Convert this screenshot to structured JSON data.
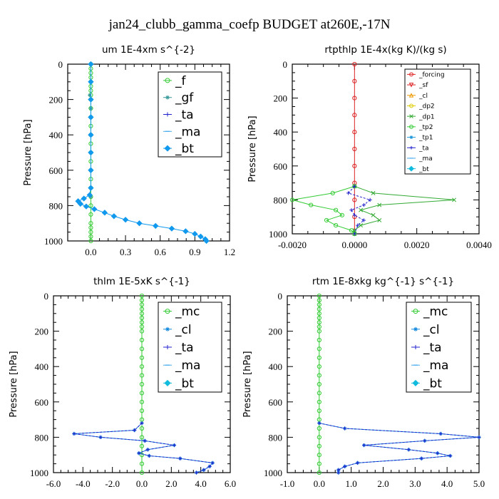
{
  "title": "jan24_clubb_gamma_coefp  BUDGET at260E,-17N",
  "chart_data": [
    {
      "type": "line",
      "title": "um  1E-4xm s^{-2}",
      "ylabel": "Pressure [hPa]",
      "xlim": [
        -0.2,
        1.2
      ],
      "ylim": [
        1000,
        0
      ],
      "xticks": [
        0.0,
        0.3,
        0.6,
        0.9,
        1.2
      ],
      "xtick_labels": [
        "0.0",
        "0.3",
        "0.6",
        "0.9",
        "1.2"
      ],
      "yticks": [
        0,
        200,
        400,
        600,
        800,
        1000
      ],
      "ytick_labels": [
        "0",
        "200",
        "400",
        "600",
        "800",
        "1000"
      ],
      "legend_position": "top-right",
      "legend_font": 17,
      "series": [
        {
          "name": "_f",
          "color": "#33cc33",
          "marker": "circle",
          "draw": "line",
          "y": [
            0,
            25,
            50,
            75,
            100,
            125,
            150,
            175,
            200,
            250,
            300,
            350,
            400,
            450,
            500,
            550,
            600,
            650,
            700,
            750,
            800,
            850,
            900,
            925,
            950,
            975,
            1000
          ],
          "x": [
            0,
            0,
            0,
            0,
            0,
            0,
            0,
            0,
            0,
            0,
            0,
            0,
            0,
            0,
            0,
            0,
            0,
            0,
            0,
            0,
            0,
            0,
            0,
            0,
            0,
            0,
            0
          ]
        },
        {
          "name": "_gf",
          "color": "#3a9a9a",
          "marker": "star",
          "draw": "points",
          "y": [
            100,
            175,
            250,
            400,
            600,
            750
          ],
          "x": [
            0,
            -0.01,
            0,
            0,
            0,
            0
          ]
        },
        {
          "name": "_ta",
          "color": "#2222cc",
          "marker": "plus",
          "draw": "none",
          "y": [],
          "x": []
        },
        {
          "name": "_ma",
          "color": "#44aaee",
          "marker": "dash",
          "draw": "none",
          "y": [],
          "x": []
        },
        {
          "name": "_bt",
          "color": "#1199ee",
          "marker": "diamond",
          "draw": "line",
          "y": [
            0,
            100,
            200,
            300,
            400,
            500,
            600,
            700,
            740,
            760,
            775,
            790,
            805,
            820,
            840,
            860,
            880,
            900,
            915,
            930,
            945,
            960,
            975,
            990,
            1000
          ],
          "x": [
            0,
            0,
            0,
            0,
            0,
            0,
            0,
            0,
            -0.01,
            -0.06,
            -0.11,
            -0.09,
            -0.04,
            0.03,
            0.12,
            0.2,
            0.3,
            0.42,
            0.56,
            0.7,
            0.82,
            0.9,
            0.95,
            0.99,
            1.0
          ]
        }
      ]
    },
    {
      "type": "line",
      "title": "rtpthlp  1E-4x(kg K)/(kg s)",
      "ylabel": "Pressure [hPa]",
      "xlim": [
        -0.002,
        0.004
      ],
      "ylim": [
        1000,
        0
      ],
      "xticks": [
        -0.002,
        0.0,
        0.002,
        0.004
      ],
      "xtick_labels": [
        "-0.0020",
        "0.0000",
        "0.0020",
        "0.0040"
      ],
      "yticks": [
        0,
        200,
        400,
        600,
        800,
        1000
      ],
      "ytick_labels": [
        "0",
        "200",
        "400",
        "600",
        "800",
        "1000"
      ],
      "legend_position": "top-right",
      "legend_font": 9,
      "series": [
        {
          "name": "_forcing",
          "color": "#dd2222",
          "marker": "circle",
          "draw": "line",
          "y": [
            0,
            100,
            200,
            300,
            400,
            500,
            600,
            700,
            800,
            900,
            1000
          ],
          "x": [
            0,
            0,
            0,
            0,
            0,
            0,
            0,
            0,
            0,
            0,
            0
          ]
        },
        {
          "name": "_sf",
          "color": "#dd2222",
          "marker": "triangle-down",
          "draw": "none",
          "y": [],
          "x": []
        },
        {
          "name": "_cl",
          "color": "#ee9900",
          "marker": "triangle",
          "draw": "none",
          "y": [],
          "x": []
        },
        {
          "name": "_dp2",
          "color": "#ddcc00",
          "marker": "circle",
          "draw": "none",
          "y": [],
          "x": []
        },
        {
          "name": "_dp1",
          "color": "#33aa33",
          "marker": "x",
          "draw": "line",
          "y": [
            720,
            760,
            800,
            830,
            860,
            890,
            920,
            950,
            980,
            1000
          ],
          "x": [
            0,
            0.0006,
            0.0032,
            0.0008,
            0.0002,
            0.0006,
            0.0008,
            0.0002,
            0,
            0
          ]
        },
        {
          "name": "_tp2",
          "color": "#33cc33",
          "marker": "circle",
          "draw": "line",
          "y": [
            720,
            760,
            800,
            830,
            860,
            890,
            920,
            950,
            980,
            1000
          ],
          "x": [
            0,
            -0.0007,
            -0.002,
            -0.0014,
            -0.0006,
            -0.0004,
            -0.0009,
            -0.0006,
            -0.0001,
            0
          ]
        },
        {
          "name": "_tp1",
          "color": "#2299dd",
          "marker": "star",
          "draw": "none",
          "y": [],
          "x": []
        },
        {
          "name": "_ta",
          "color": "#2222cc",
          "marker": "plus",
          "draw": "line",
          "y": [
            720,
            760,
            800,
            830,
            860,
            890,
            920,
            950,
            1000
          ],
          "x": [
            0,
            -0.0002,
            0.0005,
            0.0003,
            -0.0001,
            0,
            0.0003,
            0.0001,
            0
          ]
        },
        {
          "name": "_ma",
          "color": "#44aaee",
          "marker": "dash",
          "draw": "none",
          "y": [],
          "x": []
        },
        {
          "name": "_bt",
          "color": "#11bbdd",
          "marker": "diamond",
          "draw": "none",
          "y": [],
          "x": []
        }
      ]
    },
    {
      "type": "line",
      "title": "thlm  1E-5xK  s^{-1}",
      "ylabel": "Pressure [hPa]",
      "xlim": [
        -6.0,
        6.0
      ],
      "ylim": [
        1000,
        0
      ],
      "xticks": [
        -6,
        -4,
        -2,
        0,
        2,
        4,
        6
      ],
      "xtick_labels": [
        "-6.0",
        "-4.0",
        "-2.0",
        "0.0",
        "2.0",
        "4.0",
        "6.0"
      ],
      "yticks": [
        0,
        200,
        400,
        600,
        800,
        1000
      ],
      "ytick_labels": [
        "0",
        "200",
        "400",
        "600",
        "800",
        "1000"
      ],
      "legend_position": "top-right",
      "legend_font": 17,
      "series": [
        {
          "name": "_mc",
          "color": "#33cc33",
          "marker": "circle",
          "draw": "line",
          "y": [
            0,
            25,
            50,
            75,
            100,
            125,
            150,
            175,
            200,
            250,
            300,
            350,
            400,
            450,
            500,
            550,
            600,
            650,
            700,
            750,
            800,
            850,
            900,
            950,
            1000
          ],
          "x": [
            0,
            0,
            0,
            0,
            0,
            0,
            0,
            0,
            0,
            0,
            0,
            0,
            0,
            0,
            0,
            0,
            0,
            0,
            0,
            0,
            0,
            0,
            0,
            0,
            0
          ]
        },
        {
          "name": "_cl",
          "color": "#1188dd",
          "marker": "star",
          "draw": "line",
          "y": [
            720,
            760,
            780,
            800,
            820,
            845,
            870,
            890,
            905,
            920,
            945,
            965,
            985,
            1000
          ],
          "x": [
            0,
            -0.5,
            -4.6,
            -2.8,
            0.2,
            2.2,
            0.4,
            -0.2,
            0.5,
            2.6,
            4.8,
            4.6,
            4.2,
            3.7
          ]
        },
        {
          "name": "_ta",
          "color": "#2222cc",
          "marker": "plus",
          "draw": "line",
          "y": [
            720,
            760,
            780,
            800,
            820,
            845,
            870,
            890,
            905,
            920,
            945,
            965,
            985,
            1000
          ],
          "x": [
            0,
            -0.5,
            -4.6,
            -2.8,
            0.2,
            2.2,
            0.4,
            -0.2,
            0.5,
            2.6,
            4.8,
            4.6,
            4.2,
            3.7
          ]
        },
        {
          "name": "_ma",
          "color": "#44aaee",
          "marker": "dash",
          "draw": "none",
          "y": [],
          "x": []
        },
        {
          "name": "_bt",
          "color": "#11bbdd",
          "marker": "diamond",
          "draw": "none",
          "y": [],
          "x": []
        }
      ]
    },
    {
      "type": "line",
      "title": "rtm  1E-8xkg kg^{-1} s^{-1}",
      "ylabel": "Pressure [hPa]",
      "xlim": [
        -1.0,
        5.0
      ],
      "ylim": [
        1000,
        0
      ],
      "xticks": [
        -1,
        0,
        1,
        2,
        3,
        4,
        5
      ],
      "xtick_labels": [
        "-1.0",
        "0.0",
        "1.0",
        "2.0",
        "3.0",
        "4.0",
        "5.0"
      ],
      "yticks": [
        0,
        200,
        400,
        600,
        800,
        1000
      ],
      "ytick_labels": [
        "0",
        "200",
        "400",
        "600",
        "800",
        "1000"
      ],
      "legend_position": "top-right",
      "legend_font": 17,
      "series": [
        {
          "name": "_mc",
          "color": "#33cc33",
          "marker": "circle",
          "draw": "line",
          "y": [
            0,
            25,
            50,
            75,
            100,
            125,
            150,
            175,
            200,
            250,
            300,
            350,
            400,
            450,
            500,
            550,
            600,
            650,
            700,
            750,
            800,
            850,
            900,
            950,
            1000
          ],
          "x": [
            0,
            0,
            0,
            0,
            0,
            0,
            0,
            0,
            0,
            0,
            0,
            0,
            0,
            0,
            0,
            0,
            0,
            0,
            0,
            0,
            0,
            0,
            0,
            0,
            0
          ]
        },
        {
          "name": "_cl",
          "color": "#1188dd",
          "marker": "star",
          "draw": "line",
          "y": [
            720,
            750,
            780,
            800,
            820,
            845,
            870,
            890,
            905,
            920,
            945,
            965,
            985,
            1000
          ],
          "x": [
            0,
            0.8,
            3.8,
            5.0,
            3.3,
            1.4,
            2.8,
            3.7,
            4.1,
            3.2,
            1.2,
            0.8,
            0.6,
            0.6
          ]
        },
        {
          "name": "_ta",
          "color": "#2222cc",
          "marker": "plus",
          "draw": "line",
          "y": [
            720,
            750,
            780,
            800,
            820,
            845,
            870,
            890,
            905,
            920,
            945,
            965,
            985,
            1000
          ],
          "x": [
            0,
            0.8,
            3.8,
            5.0,
            3.3,
            1.4,
            2.8,
            3.7,
            4.1,
            3.2,
            1.2,
            0.8,
            0.6,
            0.6
          ]
        },
        {
          "name": "_ma",
          "color": "#44aaee",
          "marker": "dash",
          "draw": "none",
          "y": [],
          "x": []
        },
        {
          "name": "_bt",
          "color": "#11bbdd",
          "marker": "diamond",
          "draw": "none",
          "y": [],
          "x": []
        }
      ]
    }
  ]
}
